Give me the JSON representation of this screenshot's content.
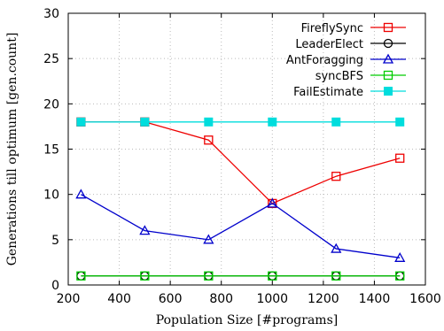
{
  "chart_data": {
    "type": "line",
    "xlabel": "Population Size [#programs]",
    "ylabel": "Generations till optimum [gen.count]",
    "xlim": [
      200,
      1600
    ],
    "ylim": [
      0,
      30
    ],
    "xticks": [
      200,
      400,
      600,
      800,
      1000,
      1200,
      1400,
      1600
    ],
    "yticks": [
      0,
      5,
      10,
      15,
      20,
      25,
      30
    ],
    "grid": true,
    "legend": "top-right",
    "x": [
      250,
      500,
      750,
      1000,
      1250,
      1500
    ],
    "series": [
      {
        "name": "FireflySync",
        "color": "#ee0000",
        "marker": "square-open",
        "values": [
          18,
          18,
          16,
          9,
          12,
          14
        ]
      },
      {
        "name": "LeaderElect",
        "color": "#000000",
        "marker": "circle-open",
        "values": [
          1,
          1,
          1,
          1,
          1,
          1
        ]
      },
      {
        "name": "AntForagging",
        "color": "#0000cc",
        "marker": "triangle-open",
        "values": [
          10,
          6,
          5,
          9,
          4,
          3
        ]
      },
      {
        "name": "syncBFS",
        "color": "#00cc00",
        "marker": "square-open",
        "values": [
          1,
          1,
          1,
          1,
          1,
          1
        ]
      },
      {
        "name": "FailEstimate",
        "color": "#00dddd",
        "marker": "square-filled",
        "values": [
          18,
          18,
          18,
          18,
          18,
          18
        ]
      }
    ]
  }
}
